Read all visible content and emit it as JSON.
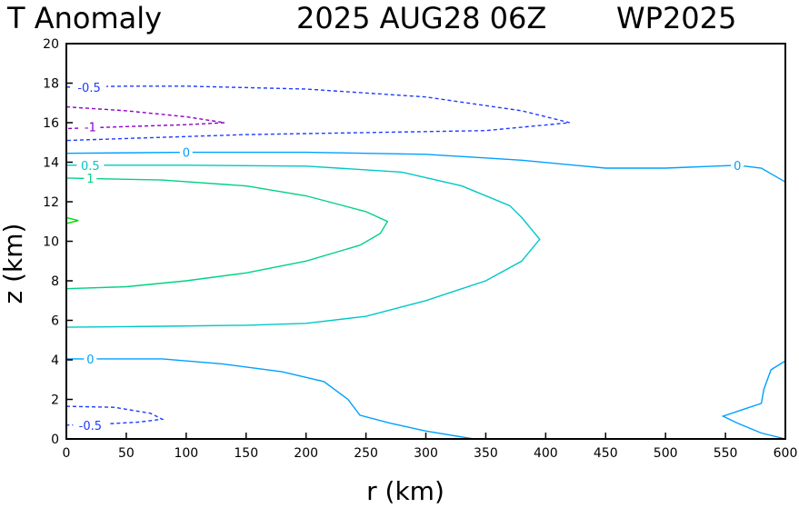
{
  "chart_data": {
    "type": "contour",
    "title": {
      "left": "T Anomaly",
      "center": "2025 AUG28 06Z",
      "right": "WP2025"
    },
    "xlabel": "r (km)",
    "ylabel": "z (km)",
    "xlim": [
      0,
      600
    ],
    "ylim": [
      0,
      20
    ],
    "xticks": [
      0,
      50,
      100,
      150,
      200,
      250,
      300,
      350,
      400,
      450,
      500,
      550,
      600
    ],
    "yticks": [
      0,
      2,
      4,
      6,
      8,
      10,
      12,
      14,
      16,
      18,
      20
    ],
    "colors": {
      "c_neg1": "#8c00c8",
      "c_neg05": "#1e3cff",
      "c_0": "#00a0ff",
      "c_05": "#00c8c8",
      "c_1": "#00d282",
      "c_15": "#00dc00"
    },
    "contours": [
      {
        "level": "-0.5",
        "color": "c_neg05",
        "dashed": true,
        "label": "-0.5",
        "label_at": [
          19,
          17.8
        ],
        "points": [
          [
            0,
            17.8
          ],
          [
            50,
            17.85
          ],
          [
            100,
            17.85
          ],
          [
            200,
            17.7
          ],
          [
            300,
            17.3
          ],
          [
            380,
            16.6
          ],
          [
            420,
            16.0
          ],
          [
            350,
            15.6
          ],
          [
            250,
            15.5
          ],
          [
            150,
            15.4
          ],
          [
            50,
            15.2
          ],
          [
            0,
            15.1
          ]
        ]
      },
      {
        "level": "-1",
        "color": "c_neg1",
        "dashed": true,
        "label": "-1",
        "label_at": [
          20,
          15.8
        ],
        "points": [
          [
            0,
            16.8
          ],
          [
            50,
            16.6
          ],
          [
            100,
            16.3
          ],
          [
            132,
            16.0
          ],
          [
            100,
            15.9
          ],
          [
            50,
            15.8
          ],
          [
            0,
            15.7
          ]
        ]
      },
      {
        "level": "0",
        "color": "c_0",
        "dashed": false,
        "label": "0",
        "label_at": [
          100,
          14.5
        ],
        "points": [
          [
            0,
            14.45
          ],
          [
            100,
            14.5
          ],
          [
            200,
            14.5
          ],
          [
            300,
            14.4
          ],
          [
            380,
            14.1
          ],
          [
            450,
            13.7
          ],
          [
            500,
            13.7
          ],
          [
            560,
            13.85
          ],
          [
            580,
            13.7
          ],
          [
            600,
            13.0
          ]
        ]
      },
      {
        "level": "0",
        "color": "c_0",
        "dashed": false,
        "label": "0",
        "label_at": [
          560,
          13.85
        ],
        "points": []
      },
      {
        "level": "0.5",
        "color": "c_05",
        "dashed": false,
        "label": "0.5",
        "label_at": [
          20,
          13.85
        ],
        "points": [
          [
            0,
            13.85
          ],
          [
            100,
            13.85
          ],
          [
            200,
            13.8
          ],
          [
            280,
            13.5
          ],
          [
            330,
            12.8
          ],
          [
            370,
            11.8
          ],
          [
            380,
            11.2
          ],
          [
            395,
            10.1
          ],
          [
            380,
            9.0
          ],
          [
            350,
            8.0
          ],
          [
            300,
            7.0
          ],
          [
            250,
            6.2
          ],
          [
            200,
            5.85
          ],
          [
            150,
            5.75
          ],
          [
            80,
            5.7
          ],
          [
            0,
            5.65
          ]
        ]
      },
      {
        "level": "1",
        "color": "c_1",
        "dashed": false,
        "label": "1",
        "label_at": [
          20,
          13.2
        ],
        "points": [
          [
            0,
            13.2
          ],
          [
            80,
            13.1
          ],
          [
            150,
            12.8
          ],
          [
            200,
            12.3
          ],
          [
            250,
            11.5
          ],
          [
            268,
            11.0
          ],
          [
            262,
            10.4
          ],
          [
            245,
            9.8
          ],
          [
            200,
            9.0
          ],
          [
            150,
            8.4
          ],
          [
            100,
            8.0
          ],
          [
            50,
            7.7
          ],
          [
            0,
            7.6
          ]
        ]
      },
      {
        "level": "1.5",
        "color": "c_15",
        "dashed": false,
        "label": "",
        "label_at": null,
        "points": [
          [
            0,
            11.2
          ],
          [
            10,
            11.05
          ],
          [
            0,
            10.9
          ]
        ]
      },
      {
        "level": "0",
        "color": "c_0",
        "dashed": false,
        "label": "0",
        "label_at": [
          20,
          4.05
        ],
        "points": [
          [
            0,
            4.05
          ],
          [
            80,
            4.05
          ],
          [
            130,
            3.8
          ],
          [
            180,
            3.4
          ],
          [
            215,
            2.9
          ],
          [
            235,
            2.0
          ],
          [
            245,
            1.2
          ],
          [
            270,
            0.8
          ],
          [
            300,
            0.4
          ],
          [
            340,
            0.0
          ]
        ]
      },
      {
        "level": "0",
        "color": "c_0",
        "dashed": false,
        "label": "",
        "label_at": null,
        "points": [
          [
            600,
            3.95
          ],
          [
            588,
            3.5
          ],
          [
            582,
            2.5
          ],
          [
            580,
            1.8
          ],
          [
            565,
            1.5
          ],
          [
            548,
            1.15
          ],
          [
            560,
            0.8
          ],
          [
            580,
            0.3
          ],
          [
            600,
            0.0
          ]
        ]
      },
      {
        "level": "-0.5",
        "color": "c_neg05",
        "dashed": true,
        "label": "-0.5",
        "label_at": [
          20,
          0.7
        ],
        "points": [
          [
            0,
            1.65
          ],
          [
            40,
            1.6
          ],
          [
            70,
            1.3
          ],
          [
            80,
            1.0
          ],
          [
            60,
            0.85
          ],
          [
            30,
            0.75
          ],
          [
            0,
            0.7
          ]
        ]
      }
    ]
  }
}
